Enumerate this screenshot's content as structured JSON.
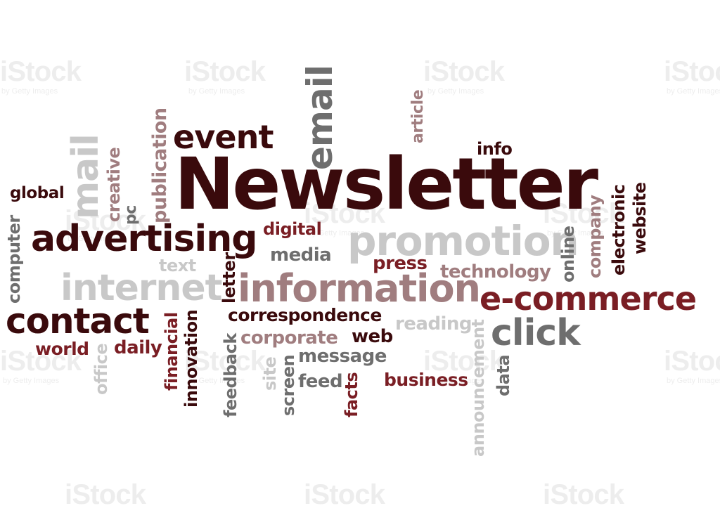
{
  "colors": {
    "dark": "#3a0a0c",
    "maroon": "#7a1e24",
    "rose": "#a07d7f",
    "grey": "#6e6e6e",
    "light_grey": "#c8c8c8"
  },
  "watermark": {
    "brand": "iStock",
    "byline": "by Getty Images"
  },
  "words": [
    "Newsletter",
    "email",
    "event",
    "mail",
    "publication",
    "creative",
    "pc",
    "article",
    "info",
    "global",
    "advertising",
    "computer",
    "digital",
    "promotion",
    "company",
    "electronic",
    "website",
    "online",
    "text",
    "media",
    "press",
    "technology",
    "internet",
    "letter",
    "information",
    "e-commerce",
    "contact",
    "financial",
    "correspondence",
    "reading",
    "click",
    "world",
    "office",
    "daily",
    "innovation",
    "feedback",
    "corporate",
    "web",
    "site",
    "screen",
    "message",
    "feed",
    "facts",
    "business",
    "announcement",
    "data"
  ]
}
